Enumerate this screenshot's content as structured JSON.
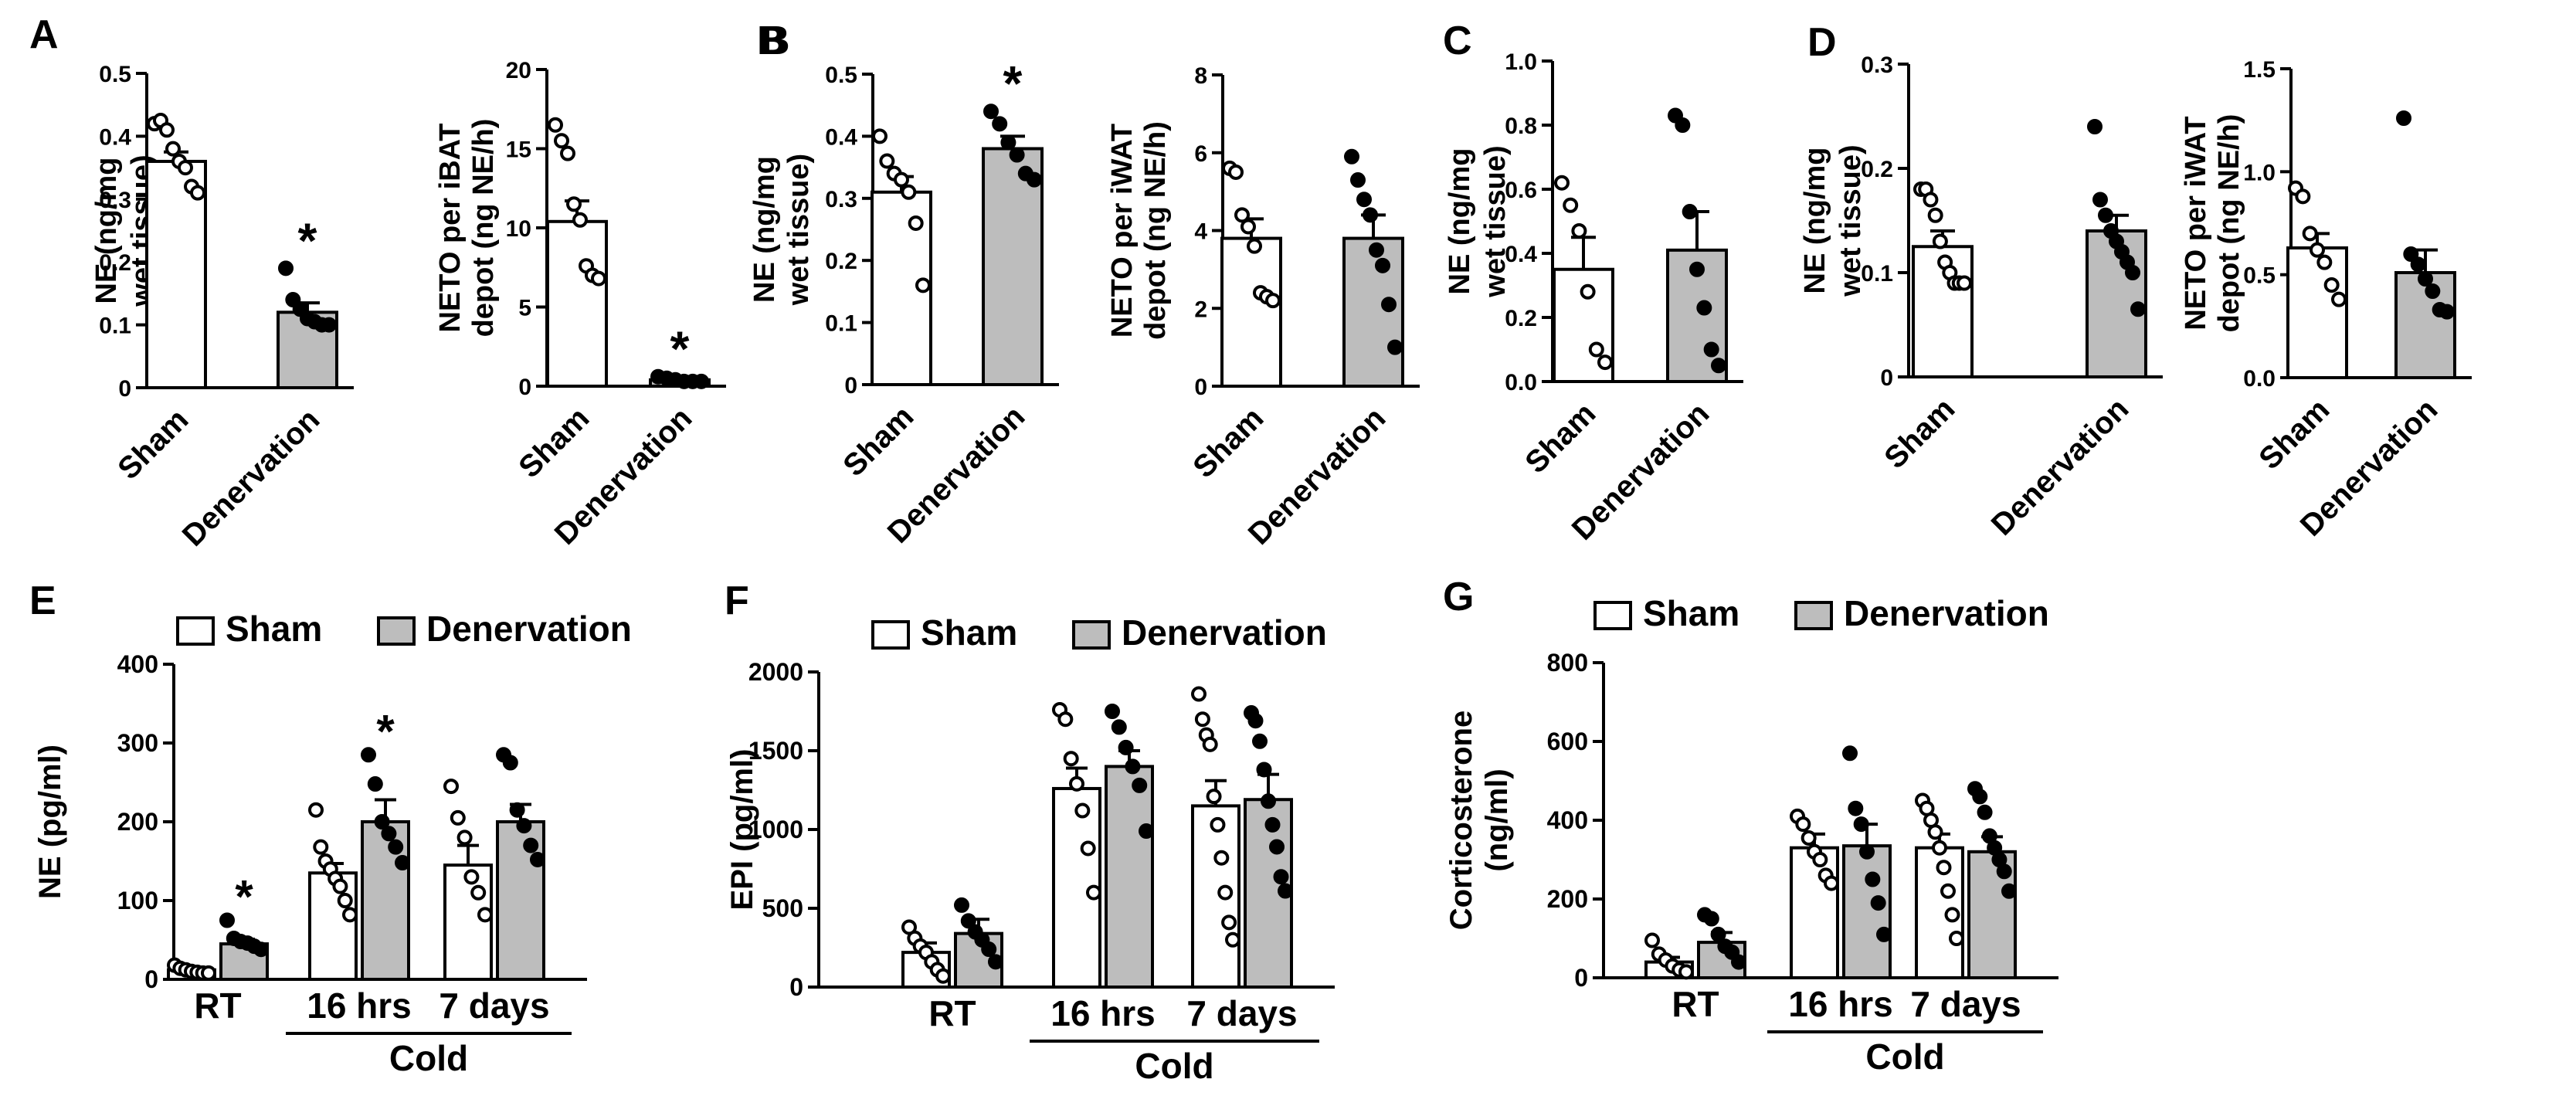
{
  "colors": {
    "sham_fill": "#ffffff",
    "denervation_fill": "#bdbdbd",
    "ink": "#000000"
  },
  "chart_data": [
    {
      "panel": "A",
      "type": "bar",
      "title": "",
      "categories": [
        "Sham",
        "Denervation"
      ],
      "ylabel": [
        "NE (ng/mg",
        "wet tissue)"
      ],
      "ylim": [
        0,
        0.5
      ],
      "yticks": [
        "0",
        "0.1",
        "0.2",
        "0.3",
        "0.4",
        "0.5"
      ],
      "means": [
        0.36,
        0.12
      ],
      "sem": [
        0.015,
        0.015
      ],
      "points": [
        [
          0.42,
          0.425,
          0.41,
          0.38,
          0.36,
          0.35,
          0.32,
          0.31
        ],
        [
          0.19,
          0.14,
          0.125,
          0.11,
          0.105,
          0.1,
          0.1
        ]
      ],
      "significance": [
        "",
        "*"
      ]
    },
    {
      "panel": "",
      "type": "bar",
      "title": "",
      "categories": [
        "Sham",
        "Denervation"
      ],
      "ylabel": [
        "NETO per iBAT",
        "depot (ng NE/h)"
      ],
      "ylim": [
        0,
        20
      ],
      "yticks": [
        "0",
        "5",
        "10",
        "15",
        "20"
      ],
      "means": [
        10.4,
        0.4
      ],
      "sem": [
        1.3,
        0.1
      ],
      "points": [
        [
          16.5,
          15.5,
          14.7,
          11.5,
          10.5,
          7.6,
          7.0,
          6.8
        ],
        [
          0.6,
          0.5,
          0.4,
          0.3,
          0.3,
          0.3
        ]
      ],
      "significance": [
        "",
        "*"
      ]
    },
    {
      "panel": "B",
      "type": "bar",
      "title": "",
      "categories": [
        "Sham",
        "Denervation"
      ],
      "ylabel": [
        "NE (ng/mg",
        "wet tissue)"
      ],
      "ylim": [
        0,
        0.5
      ],
      "yticks": [
        "0",
        "0.1",
        "0.2",
        "0.3",
        "0.4",
        "0.5"
      ],
      "means": [
        0.31,
        0.38
      ],
      "sem": [
        0.025,
        0.02
      ],
      "points": [
        [
          0.4,
          0.36,
          0.34,
          0.33,
          0.31,
          0.26,
          0.16
        ],
        [
          0.44,
          0.42,
          0.39,
          0.37,
          0.34,
          0.33
        ]
      ],
      "significance": [
        "",
        "*"
      ]
    },
    {
      "panel": "",
      "type": "bar",
      "title": "",
      "categories": [
        "Sham",
        "Denervation"
      ],
      "ylabel": [
        "NETO per iWAT",
        "depot (ng NE/h)"
      ],
      "ylim": [
        0,
        8
      ],
      "yticks": [
        "0",
        "2",
        "4",
        "6",
        "8"
      ],
      "means": [
        3.8,
        3.8
      ],
      "sem": [
        0.5,
        0.6
      ],
      "points": [
        [
          5.6,
          5.5,
          4.4,
          4.1,
          3.6,
          2.4,
          2.3,
          2.2
        ],
        [
          5.9,
          5.3,
          4.8,
          4.4,
          3.5,
          3.1,
          2.1,
          1.0
        ]
      ],
      "significance": [
        "",
        ""
      ]
    },
    {
      "panel": "C",
      "type": "bar",
      "title": "",
      "categories": [
        "Sham",
        "Denervation"
      ],
      "ylabel": [
        "NE (ng/mg",
        "wet tissue)"
      ],
      "ylim": [
        0,
        1.0
      ],
      "yticks": [
        "0.0",
        "0.2",
        "0.4",
        "0.6",
        "0.8",
        "1.0"
      ],
      "means": [
        0.35,
        0.41
      ],
      "sem": [
        0.1,
        0.12
      ],
      "points": [
        [
          0.62,
          0.55,
          0.47,
          0.28,
          0.1,
          0.06
        ],
        [
          0.83,
          0.8,
          0.53,
          0.35,
          0.23,
          0.1,
          0.05
        ]
      ],
      "significance": [
        "",
        ""
      ]
    },
    {
      "panel": "D",
      "type": "bar",
      "title": "",
      "categories": [
        "Sham",
        "Denervation"
      ],
      "ylabel": [
        "NE (ng/mg",
        "wet tissue)"
      ],
      "ylim": [
        0,
        0.3
      ],
      "yticks": [
        "0",
        "0.1",
        "0.2",
        "0.3"
      ],
      "means": [
        0.125,
        0.14
      ],
      "sem": [
        0.015,
        0.015
      ],
      "points": [
        [
          0.18,
          0.18,
          0.17,
          0.155,
          0.13,
          0.11,
          0.1,
          0.09,
          0.09,
          0.09
        ],
        [
          0.24,
          0.17,
          0.155,
          0.14,
          0.13,
          0.12,
          0.11,
          0.1,
          0.065
        ]
      ],
      "significance": [
        "",
        ""
      ]
    },
    {
      "panel": "",
      "type": "bar",
      "title": "",
      "categories": [
        "Sham",
        "Denervation"
      ],
      "ylabel": [
        "NETO per iWAT",
        "depot (ng NE/h)"
      ],
      "ylim": [
        0,
        1.5
      ],
      "yticks": [
        "0.0",
        "0.5",
        "1.0",
        "1.5"
      ],
      "means": [
        0.63,
        0.51
      ],
      "sem": [
        0.07,
        0.11
      ],
      "points": [
        [
          0.92,
          0.88,
          0.7,
          0.62,
          0.56,
          0.45,
          0.38
        ],
        [
          1.26,
          0.6,
          0.55,
          0.48,
          0.42,
          0.33,
          0.32
        ]
      ],
      "significance": [
        "",
        ""
      ]
    }
  ],
  "grouped_panels": [
    {
      "panel": "E",
      "type": "bar",
      "legend": [
        "Sham",
        "Denervation"
      ],
      "ylabel": [
        "NE (pg/ml)"
      ],
      "ylim": [
        0,
        400
      ],
      "yticks": [
        "0",
        "100",
        "200",
        "300",
        "400"
      ],
      "groups": [
        "RT",
        "16 hrs",
        "7 days"
      ],
      "group_bracket": "Cold",
      "means": [
        [
          12,
          45
        ],
        [
          135,
          200
        ],
        [
          145,
          200
        ]
      ],
      "sem": [
        [
          3,
          6
        ],
        [
          12,
          28
        ],
        [
          25,
          22
        ]
      ],
      "points": [
        [
          [
            18,
            14,
            12,
            10,
            9,
            8,
            8
          ],
          [
            75,
            52,
            48,
            46,
            42,
            38
          ]
        ],
        [
          [
            215,
            168,
            150,
            140,
            128,
            118,
            100,
            82
          ],
          [
            285,
            248,
            200,
            185,
            168,
            148
          ]
        ],
        [
          [
            245,
            205,
            180,
            130,
            110,
            82
          ],
          [
            285,
            275,
            215,
            195,
            170,
            152
          ]
        ]
      ],
      "significance": [
        [
          "",
          "*"
        ],
        [
          "",
          "*"
        ],
        [
          "",
          ""
        ]
      ]
    },
    {
      "panel": "F",
      "type": "bar",
      "legend": [
        "Sham",
        "Denervation"
      ],
      "ylabel": [
        "EPI (pg/ml)"
      ],
      "ylim": [
        0,
        2000
      ],
      "yticks": [
        "0",
        "500",
        "1000",
        "1500",
        "2000"
      ],
      "groups": [
        "RT",
        "16 hrs",
        "7 days"
      ],
      "group_bracket": "Cold",
      "means": [
        [
          220,
          340
        ],
        [
          1260,
          1400
        ],
        [
          1150,
          1190
        ]
      ],
      "sem": [
        [
          60,
          90
        ],
        [
          130,
          100
        ],
        [
          160,
          160
        ]
      ],
      "points": [
        [
          [
            380,
            310,
            260,
            220,
            160,
            110,
            70
          ],
          [
            520,
            420,
            350,
            300,
            240,
            160
          ]
        ],
        [
          [
            1760,
            1700,
            1450,
            1290,
            1120,
            880,
            600
          ],
          [
            1750,
            1650,
            1520,
            1400,
            1280,
            990
          ]
        ],
        [
          [
            1860,
            1700,
            1600,
            1540,
            1210,
            1030,
            820,
            600,
            410,
            300
          ],
          [
            1740,
            1690,
            1560,
            1380,
            1180,
            1030,
            890,
            700,
            610
          ]
        ]
      ],
      "significance": [
        [
          "",
          ""
        ],
        [
          "",
          ""
        ],
        [
          "",
          ""
        ]
      ]
    },
    {
      "panel": "G",
      "type": "bar",
      "legend": [
        "Sham",
        "Denervation"
      ],
      "ylabel": [
        "Corticosterone",
        "(ng/ml)"
      ],
      "ylim": [
        0,
        800
      ],
      "yticks": [
        "0",
        "200",
        "400",
        "600",
        "800"
      ],
      "groups": [
        "RT",
        "16 hrs",
        "7 days"
      ],
      "group_bracket": "Cold",
      "means": [
        [
          40,
          90
        ],
        [
          330,
          335
        ],
        [
          330,
          320
        ]
      ],
      "sem": [
        [
          12,
          25
        ],
        [
          35,
          55
        ],
        [
          35,
          38
        ]
      ],
      "points": [
        [
          [
            95,
            60,
            45,
            30,
            20,
            15
          ],
          [
            160,
            150,
            110,
            80,
            65,
            40
          ]
        ],
        [
          [
            410,
            390,
            355,
            320,
            300,
            260,
            240
          ],
          [
            570,
            430,
            390,
            320,
            250,
            190,
            110
          ]
        ],
        [
          [
            450,
            430,
            400,
            370,
            330,
            280,
            220,
            160,
            100
          ],
          [
            480,
            460,
            420,
            360,
            330,
            300,
            270,
            220
          ]
        ]
      ],
      "significance": [
        [
          "",
          ""
        ],
        [
          "",
          ""
        ],
        [
          "",
          ""
        ]
      ]
    }
  ]
}
